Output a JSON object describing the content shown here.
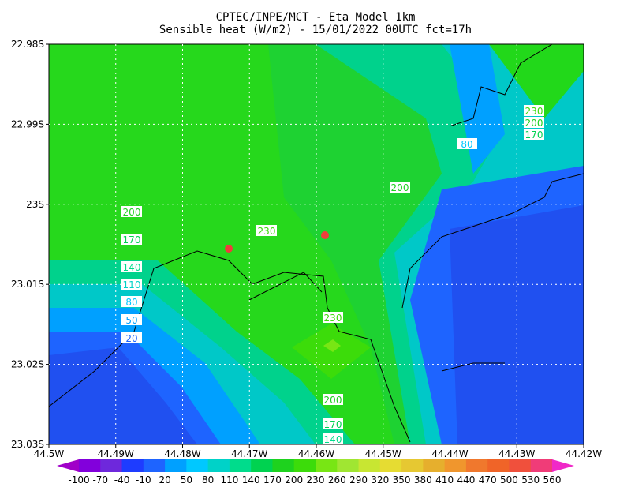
{
  "header": {
    "line1": "CPTEC/INPE/MCT -  Eta Model 1km",
    "line2": "Sensible heat (W/m2) - 15/01/2022 00UTC fct=17h"
  },
  "lon_ticks": [
    "44.5W",
    "44.49W",
    "44.48W",
    "44.47W",
    "44.46W",
    "44.45W",
    "44.44W",
    "44.43W",
    "44.42W"
  ],
  "lat_ticks": [
    "22.98S",
    "22.99S",
    "23S",
    "23.01S",
    "23.02S",
    "23.03S"
  ],
  "contour_labels": [
    "200",
    "170",
    "140",
    "110",
    "80",
    "50",
    "20",
    "230",
    "200",
    "80",
    "230",
    "200",
    "170",
    "230",
    "200",
    "170",
    "140"
  ],
  "colorbar": {
    "labels": [
      "-100",
      "-70",
      "-40",
      "-10",
      "20",
      "50",
      "80",
      "110",
      "140",
      "170",
      "200",
      "230",
      "260",
      "290",
      "320",
      "350",
      "380",
      "410",
      "440",
      "470",
      "500",
      "530",
      "560"
    ],
    "colors": [
      "#a000c8",
      "#8200dc",
      "#6e28dc",
      "#1e3cff",
      "#1e64ff",
      "#00a0ff",
      "#00c8ff",
      "#00d2c8",
      "#00dc8c",
      "#00d250",
      "#1ed21e",
      "#3cdc0a",
      "#78e614",
      "#a0e632",
      "#c8e632",
      "#e6dc32",
      "#e6c832",
      "#e6af2d",
      "#f0962d",
      "#f0782d",
      "#f06428",
      "#f0503c",
      "#f03c78",
      "#f028c8"
    ]
  }
}
